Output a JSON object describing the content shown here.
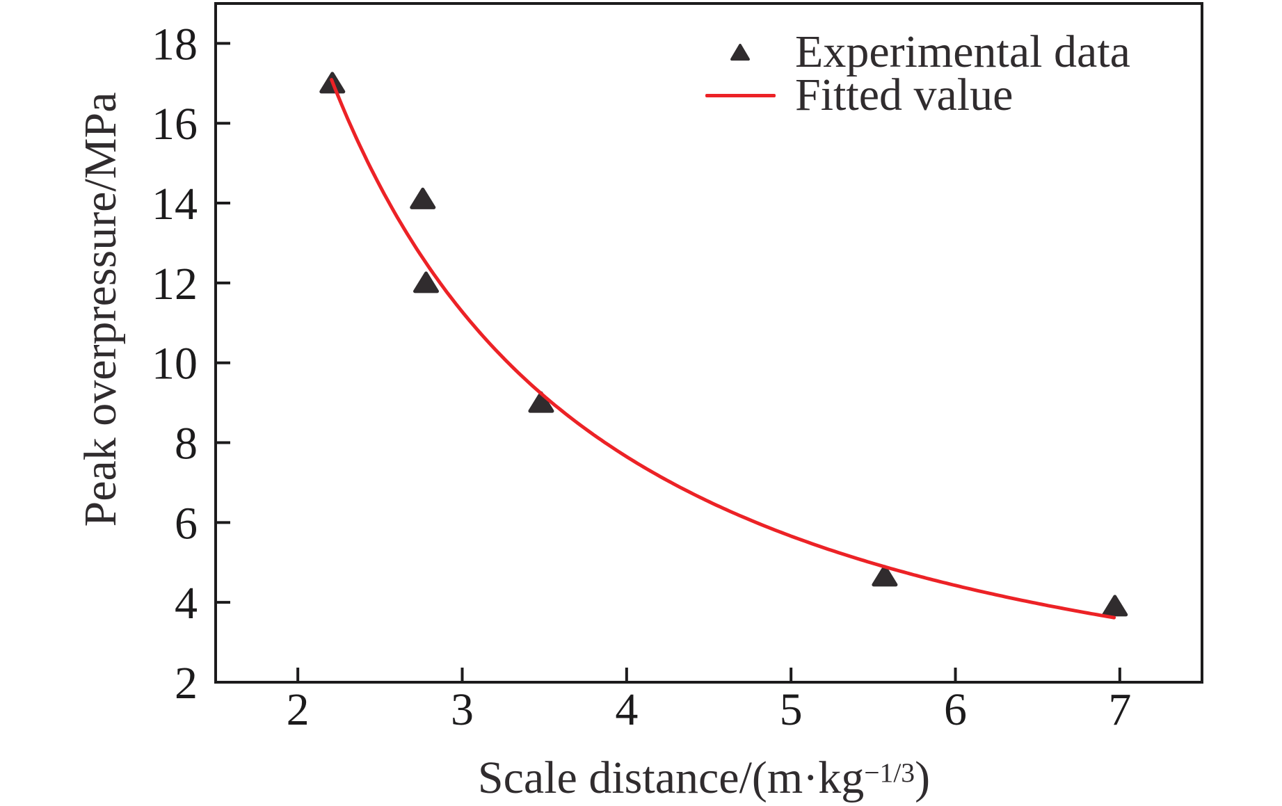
{
  "figure": {
    "background_color": "#ffffff",
    "axis_color": "#1c1b1c",
    "text_color": "#1c1b1c"
  },
  "chart_data": {
    "type": "scatter",
    "title": "",
    "ylabel": "Peak overpressure/MPa",
    "xlabel": "Scale distance/(m·kg⁻¹ᐟ³)",
    "xlabel_parts": {
      "prefix": "Scale distance/(m·kg",
      "sup": "−1/3",
      "suffix": ")"
    },
    "xlim": [
      1.5,
      7.5
    ],
    "ylim": [
      2,
      19
    ],
    "x_ticks": [
      2,
      3,
      4,
      5,
      6,
      7
    ],
    "y_ticks": [
      2,
      4,
      6,
      8,
      10,
      12,
      14,
      16,
      18
    ],
    "grid": false,
    "legend_position": "upper-right",
    "series": [
      {
        "name": "Experimental data",
        "type": "scatter",
        "marker": "triangle-up",
        "color": "#302c2e",
        "points": [
          [
            2.21,
            17.0
          ],
          [
            2.76,
            14.1
          ],
          [
            2.78,
            12.0
          ],
          [
            3.48,
            9.0
          ],
          [
            5.57,
            4.65
          ],
          [
            6.97,
            3.9
          ]
        ]
      },
      {
        "name": "Fitted value",
        "type": "line",
        "color": "#ec2226",
        "fit": {
          "model": "power",
          "equation": "y = a * x^b",
          "a": 49.7,
          "b": -1.35,
          "x_start": 2.205,
          "x_end": 6.98
        }
      }
    ]
  }
}
